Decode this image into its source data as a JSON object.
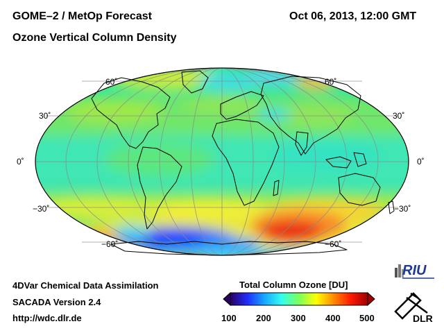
{
  "header": {
    "title": "GOME–2 / MetOp Forecast",
    "subtitle": "Ozone Vertical Column Density",
    "datetime": "Oct 06, 2013, 12:00 GMT"
  },
  "map": {
    "projection": "Mollweide",
    "latitude_labels": {
      "north60": "60˚",
      "north30": "30˚",
      "equator": "0˚",
      "south30": "−30˚",
      "south60": "−60˚"
    }
  },
  "footer": {
    "line1": "4DVar Chemical Data Assimilation",
    "line2": "SACADA Version 2.4",
    "url": "http://wdc.dlr.de"
  },
  "colorbar": {
    "title": "Total Column Ozone [DU]",
    "ticks": [
      "100",
      "200",
      "300",
      "400",
      "500"
    ],
    "colors": [
      "#2a0060",
      "#1f2dff",
      "#17a8ff",
      "#33ffee",
      "#7cff5a",
      "#ffff00",
      "#ff8c00",
      "#ff1a00",
      "#a00000"
    ]
  },
  "logos": {
    "riu": "RIU",
    "dlr": "DLR"
  }
}
